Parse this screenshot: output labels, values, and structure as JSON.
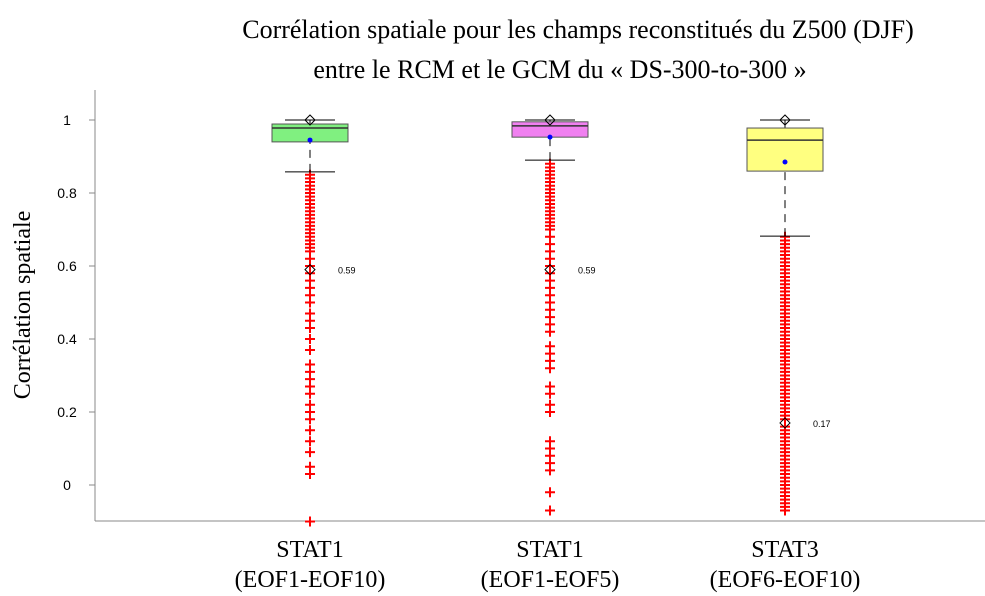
{
  "chart_data": {
    "type": "box",
    "title": [
      "Corrélation spatiale pour les champs reconstitués du Z500 (DJF)",
      "entre le RCM et le GCM du « DS-300-to-300 »"
    ],
    "y_label": "Corrélation spatiale",
    "categories": [
      [
        "STAT1",
        "(EOF1-EOF10)"
      ],
      [
        "STAT1",
        "(EOF1-EOF5)"
      ],
      [
        "STAT3",
        "(EOF6-EOF10)"
      ]
    ],
    "ylim": [
      -0.1,
      1.08
    ],
    "yticks": [
      0,
      0.2,
      0.4,
      0.6,
      0.8,
      1
    ],
    "mean_color": "#0000ff",
    "outlier_color": "#ff0000",
    "boxes": [
      {
        "color": "#80f080",
        "whisker_low": 0.858,
        "q1": 0.94,
        "median": 0.978,
        "q3": 0.989,
        "whisker_high": 1.0,
        "max": 1.0,
        "mean": 0.945,
        "annotation": 0.59,
        "outliers": [
          0.85,
          0.84,
          0.83,
          0.82,
          0.81,
          0.8,
          0.79,
          0.78,
          0.77,
          0.76,
          0.75,
          0.74,
          0.73,
          0.72,
          0.71,
          0.7,
          0.69,
          0.68,
          0.67,
          0.66,
          0.65,
          0.64,
          0.62,
          0.6,
          0.58,
          0.56,
          0.54,
          0.52,
          0.5,
          0.47,
          0.45,
          0.43,
          0.4,
          0.37,
          0.33,
          0.31,
          0.29,
          0.27,
          0.25,
          0.22,
          0.2,
          0.18,
          0.15,
          0.12,
          0.09,
          0.05,
          0.03,
          -0.1
        ]
      },
      {
        "color": "#f080f0",
        "whisker_low": 0.89,
        "q1": 0.953,
        "median": 0.984,
        "q3": 0.995,
        "whisker_high": 1.0,
        "max": 1.0,
        "mean": 0.953,
        "annotation": 0.59,
        "outliers": [
          0.88,
          0.87,
          0.86,
          0.85,
          0.84,
          0.83,
          0.82,
          0.81,
          0.8,
          0.79,
          0.78,
          0.77,
          0.76,
          0.75,
          0.74,
          0.73,
          0.72,
          0.71,
          0.7,
          0.68,
          0.66,
          0.64,
          0.62,
          0.6,
          0.58,
          0.56,
          0.54,
          0.52,
          0.5,
          0.48,
          0.46,
          0.44,
          0.42,
          0.38,
          0.36,
          0.34,
          0.32,
          0.27,
          0.25,
          0.22,
          0.2,
          0.12,
          0.1,
          0.08,
          0.06,
          0.04,
          -0.02,
          -0.07
        ]
      },
      {
        "color": "#ffff80",
        "whisker_low": 0.682,
        "q1": 0.86,
        "median": 0.945,
        "q3": 0.978,
        "whisker_high": 1.0,
        "max": 1.0,
        "mean": 0.885,
        "annotation": 0.17,
        "outliers": [
          0.68,
          0.67,
          0.66,
          0.65,
          0.64,
          0.63,
          0.62,
          0.61,
          0.6,
          0.59,
          0.58,
          0.57,
          0.56,
          0.55,
          0.54,
          0.53,
          0.52,
          0.51,
          0.5,
          0.49,
          0.48,
          0.47,
          0.46,
          0.45,
          0.44,
          0.43,
          0.42,
          0.41,
          0.4,
          0.39,
          0.38,
          0.37,
          0.36,
          0.35,
          0.34,
          0.33,
          0.32,
          0.31,
          0.3,
          0.29,
          0.28,
          0.27,
          0.26,
          0.25,
          0.24,
          0.23,
          0.22,
          0.21,
          0.2,
          0.19,
          0.18,
          0.16,
          0.15,
          0.14,
          0.13,
          0.12,
          0.11,
          0.1,
          0.09,
          0.08,
          0.07,
          0.06,
          0.05,
          0.04,
          0.03,
          0.02,
          0.01,
          0,
          -0.01,
          -0.02,
          -0.03,
          -0.04,
          -0.05,
          -0.06,
          -0.07
        ]
      }
    ]
  }
}
